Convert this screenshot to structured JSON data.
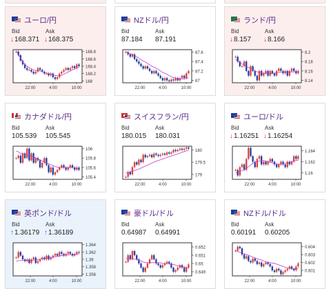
{
  "colors": {
    "up": "#d9433e",
    "down": "#e0301e",
    "rise": "#3a66c4",
    "card_bg_neutral": "#ffffff",
    "card_bg_pink": "#fdeeee",
    "card_bg_blue": "#eaf3fc"
  },
  "labels": {
    "bid": "Bid",
    "ask": "Ask"
  },
  "cards": [
    {
      "title": "ユーロ/円",
      "flag": "eu-jp-flag",
      "dir": "down",
      "bid": "168.371",
      "ask": "168.375",
      "bg": "pink",
      "chart_data": {
        "type": "line",
        "x_ticks": [
          "22:00",
          "4:00",
          "10:00"
        ],
        "y_ticks": [
          "168.8",
          "168.6",
          "168.4",
          "168.2",
          "168"
        ],
        "ylim": [
          167.95,
          168.85
        ],
        "values": [
          168.8,
          168.7,
          168.55,
          168.45,
          168.35,
          168.3,
          168.3,
          168.25,
          168.2,
          168.25,
          168.35,
          168.3,
          168.25,
          168.2,
          168.2,
          168.15,
          168.2,
          168.1,
          168.05,
          168.1,
          168.2,
          168.25,
          168.3,
          168.35,
          168.3,
          168.35,
          168.4,
          168.35,
          168.45,
          168.4
        ],
        "ma": [
          168.8,
          168.72,
          168.62,
          168.52,
          168.45,
          168.4,
          168.36,
          168.33,
          168.3,
          168.28,
          168.28,
          168.27,
          168.26,
          168.24,
          168.22,
          168.2,
          168.19,
          168.17,
          168.15,
          168.14,
          168.14,
          168.15,
          168.18,
          168.21,
          168.24,
          168.27,
          168.3,
          168.32,
          168.35,
          168.37
        ]
      }
    },
    {
      "title": "NZドル/円",
      "flag": "nz-jp-flag",
      "dir": "none",
      "bid": "87.184",
      "ask": "87.191",
      "bg": "neutral",
      "chart_data": {
        "type": "line",
        "x_ticks": [
          "22:00",
          "4:00",
          "10:00"
        ],
        "y_ticks": [
          "87.6",
          "87.4",
          "87.2",
          "87"
        ],
        "ylim": [
          86.95,
          87.65
        ],
        "values": [
          87.6,
          87.55,
          87.5,
          87.55,
          87.45,
          87.4,
          87.35,
          87.3,
          87.25,
          87.3,
          87.25,
          87.2,
          87.15,
          87.2,
          87.15,
          87.1,
          87.05,
          87.0,
          87.05,
          87.0,
          86.98,
          87.02,
          87.0,
          87.05,
          87.0,
          87.05,
          87.1,
          87.05,
          87.15,
          87.2
        ],
        "ma": [
          87.6,
          87.58,
          87.56,
          87.55,
          87.52,
          87.5,
          87.47,
          87.44,
          87.41,
          87.39,
          87.36,
          87.33,
          87.3,
          87.28,
          87.26,
          87.23,
          87.2,
          87.17,
          87.15,
          87.13,
          87.1,
          87.08,
          87.06,
          87.05,
          87.04,
          87.03,
          87.03,
          87.03,
          87.04,
          87.06
        ]
      }
    },
    {
      "title": "ランド/円",
      "flag": "za-jp-flag",
      "dir": "down",
      "bid": "8.157",
      "ask": "8.166",
      "bg": "pink",
      "chart_data": {
        "type": "line",
        "x_ticks": [
          "22:00",
          "4:00",
          "10:00"
        ],
        "y_ticks": [
          "8.2",
          "8.18",
          "8.16",
          "8.14"
        ],
        "ylim": [
          8.135,
          8.205
        ],
        "values": [
          8.19,
          8.18,
          8.17,
          8.17,
          8.18,
          8.16,
          8.15,
          8.17,
          8.16,
          8.15,
          8.14,
          8.16,
          8.15,
          8.155,
          8.16,
          8.15,
          8.16,
          8.155,
          8.15,
          8.16,
          8.165,
          8.16,
          8.155,
          8.16,
          8.15,
          8.16,
          8.165,
          8.16,
          8.155,
          8.16
        ],
        "ma": [
          8.185,
          8.18,
          8.178,
          8.175,
          8.172,
          8.17,
          8.167,
          8.165,
          8.163,
          8.16,
          8.158,
          8.157,
          8.156,
          8.155,
          8.155,
          8.155,
          8.155,
          8.155,
          8.155,
          8.156,
          8.157,
          8.157,
          8.157,
          8.157,
          8.157,
          8.158,
          8.158,
          8.158,
          8.158,
          8.158
        ]
      }
    },
    {
      "title": "カナダドル/円",
      "flag": "ca-jp-flag",
      "dir": "none",
      "bid": "105.539",
      "ask": "105.545",
      "bg": "neutral",
      "chart_data": {
        "type": "line",
        "x_ticks": [
          "22:00",
          "4:00",
          "10:00"
        ],
        "y_ticks": [
          "106",
          "105.8",
          "105.6",
          "105.4"
        ],
        "ylim": [
          105.35,
          106.05
        ],
        "values": [
          105.8,
          105.85,
          105.7,
          105.9,
          105.8,
          106.0,
          105.75,
          105.9,
          105.7,
          105.8,
          105.75,
          105.6,
          105.7,
          105.8,
          105.65,
          105.5,
          105.6,
          105.45,
          105.5,
          105.55,
          105.6,
          105.65,
          105.6,
          105.55,
          105.6,
          105.65,
          105.6,
          105.55,
          105.6,
          105.55
        ],
        "ma": [
          105.95,
          105.93,
          105.9,
          105.88,
          105.87,
          105.86,
          105.85,
          105.84,
          105.82,
          105.8,
          105.78,
          105.76,
          105.74,
          105.72,
          105.7,
          105.68,
          105.66,
          105.64,
          105.62,
          105.61,
          105.6,
          105.6,
          105.6,
          105.6,
          105.6,
          105.6,
          105.6,
          105.6,
          105.59,
          105.58
        ]
      }
    },
    {
      "title": "スイスフラン/円",
      "flag": "ch-jp-flag",
      "dir": "none",
      "bid": "180.015",
      "ask": "180.031",
      "bg": "neutral",
      "chart_data": {
        "type": "line",
        "x_ticks": [
          "22:00",
          "4:00",
          "10:00"
        ],
        "y_ticks": [
          "180",
          "179.5",
          "179"
        ],
        "ylim": [
          178.8,
          180.15
        ],
        "values": [
          178.9,
          179.1,
          179.0,
          179.3,
          179.5,
          179.4,
          179.6,
          179.5,
          179.8,
          179.7,
          179.75,
          179.8,
          179.7,
          179.85,
          179.8,
          179.75,
          179.8,
          179.85,
          179.8,
          179.9,
          179.85,
          179.9,
          180.0,
          179.95,
          180.0,
          180.05,
          180.0,
          180.05,
          180.1,
          180.05
        ],
        "ma": [
          179.05,
          179.08,
          179.1,
          179.13,
          179.16,
          179.19,
          179.22,
          179.26,
          179.3,
          179.34,
          179.38,
          179.42,
          179.46,
          179.5,
          179.54,
          179.57,
          179.6,
          179.63,
          179.66,
          179.69,
          179.72,
          179.75,
          179.78,
          179.81,
          179.84,
          179.87,
          179.9,
          179.93,
          179.96,
          179.98
        ]
      }
    },
    {
      "title": "ユーロ/ドル",
      "flag": "eu-us-flag",
      "dir": "down",
      "bid": "1.16251",
      "ask": "1.16254",
      "bg": "neutral",
      "chart_data": {
        "type": "line",
        "x_ticks": [
          "22:00",
          "4:00",
          "10:00"
        ],
        "y_ticks": [
          "1.164",
          "1.162",
          "1.16"
        ],
        "ylim": [
          1.1588,
          1.1648
        ],
        "values": [
          1.1605,
          1.1595,
          1.161,
          1.1615,
          1.1605,
          1.1625,
          1.1645,
          1.163,
          1.162,
          1.161,
          1.1625,
          1.163,
          1.1615,
          1.162,
          1.1615,
          1.162,
          1.1625,
          1.162,
          1.1615,
          1.161,
          1.1615,
          1.162,
          1.1615,
          1.161,
          1.162,
          1.1615,
          1.162,
          1.163,
          1.1625,
          1.163
        ],
        "ma": [
          1.16,
          1.1601,
          1.1602,
          1.1604,
          1.1606,
          1.1608,
          1.1611,
          1.1614,
          1.1617,
          1.1619,
          1.162,
          1.1621,
          1.1622,
          1.1622,
          1.1621,
          1.162,
          1.1619,
          1.1618,
          1.1617,
          1.1616,
          1.1615,
          1.1615,
          1.1616,
          1.1617,
          1.1618,
          1.1619,
          1.162,
          1.1621,
          1.1622,
          1.1623
        ]
      }
    },
    {
      "title": "英ポンド/ドル",
      "flag": "gb-us-flag",
      "dir": "up",
      "bid": "1.36179",
      "ask": "1.36189",
      "bg": "blue",
      "chart_data": {
        "type": "line",
        "x_ticks": [
          "22:00",
          "4:00",
          "10:00"
        ],
        "y_ticks": [
          "1.364",
          "1.362",
          "1.36",
          "1.358",
          "1.356"
        ],
        "ylim": [
          1.3555,
          1.3645
        ],
        "values": [
          1.3605,
          1.362,
          1.361,
          1.36,
          1.3595,
          1.36,
          1.359,
          1.36,
          1.3605,
          1.359,
          1.3595,
          1.36,
          1.3605,
          1.36,
          1.361,
          1.36,
          1.3605,
          1.361,
          1.3615,
          1.361,
          1.362,
          1.3615,
          1.361,
          1.3615,
          1.362,
          1.3615,
          1.361,
          1.3615,
          1.362,
          1.3618
        ],
        "ma": [
          1.3595,
          1.3596,
          1.3597,
          1.3597,
          1.3597,
          1.3597,
          1.3597,
          1.3598,
          1.3598,
          1.3598,
          1.3599,
          1.36,
          1.3601,
          1.3602,
          1.3603,
          1.3604,
          1.3605,
          1.3606,
          1.3607,
          1.3608,
          1.3609,
          1.361,
          1.3611,
          1.3611,
          1.3612,
          1.3612,
          1.3613,
          1.3613,
          1.3614,
          1.3614
        ]
      }
    },
    {
      "title": "豪ドル/ドル",
      "flag": "au-us-flag",
      "dir": "none",
      "bid": "0.64987",
      "ask": "0.64991",
      "bg": "neutral",
      "chart_data": {
        "type": "line",
        "x_ticks": [
          "22:00",
          "4:00",
          "10:00"
        ],
        "y_ticks": [
          "0.652",
          "0.651",
          "0.65",
          "0.649"
        ],
        "ylim": [
          0.6485,
          0.6525
        ],
        "values": [
          0.6502,
          0.651,
          0.6505,
          0.6515,
          0.651,
          0.6505,
          0.65,
          0.6495,
          0.649,
          0.6495,
          0.65,
          0.6505,
          0.651,
          0.6505,
          0.65,
          0.6498,
          0.6495,
          0.6498,
          0.65,
          0.6502,
          0.65,
          0.6495,
          0.649,
          0.6492,
          0.6495,
          0.6498,
          0.6495,
          0.649,
          0.6495,
          0.6499
        ],
        "ma": [
          0.6506,
          0.6506,
          0.6506,
          0.6506,
          0.6505,
          0.6505,
          0.6504,
          0.6503,
          0.6502,
          0.6501,
          0.6501,
          0.6501,
          0.6501,
          0.6501,
          0.6501,
          0.6501,
          0.6501,
          0.65,
          0.65,
          0.65,
          0.65,
          0.6499,
          0.6499,
          0.6498,
          0.6497,
          0.6497,
          0.6496,
          0.6496,
          0.6495,
          0.6495
        ]
      }
    },
    {
      "title": "NZドル/ドル",
      "flag": "nz-us-flag",
      "dir": "none",
      "bid": "0.60191",
      "ask": "0.60205",
      "bg": "neutral",
      "chart_data": {
        "type": "line",
        "x_ticks": [
          "22:00",
          "4:00",
          "10:00"
        ],
        "y_ticks": [
          "0.604",
          "0.603",
          "0.602",
          "0.601"
        ],
        "ylim": [
          0.6003,
          0.6045
        ],
        "values": [
          0.6035,
          0.604,
          0.6038,
          0.603,
          0.6025,
          0.6028,
          0.6022,
          0.602,
          0.6025,
          0.6022,
          0.6018,
          0.602,
          0.6015,
          0.6018,
          0.602,
          0.6018,
          0.6015,
          0.601,
          0.6008,
          0.6012,
          0.601,
          0.6005,
          0.6008,
          0.601,
          0.6012,
          0.6015,
          0.6012,
          0.601,
          0.6015,
          0.6019
        ],
        "ma": [
          0.6035,
          0.6034,
          0.6033,
          0.6032,
          0.6031,
          0.603,
          0.6029,
          0.6028,
          0.6027,
          0.6026,
          0.6025,
          0.6024,
          0.6023,
          0.6022,
          0.6021,
          0.602,
          0.602,
          0.6019,
          0.6019,
          0.6018,
          0.6017,
          0.6016,
          0.6015,
          0.6014,
          0.6013,
          0.6013,
          0.6012,
          0.6012,
          0.6012,
          0.6012
        ]
      }
    }
  ]
}
